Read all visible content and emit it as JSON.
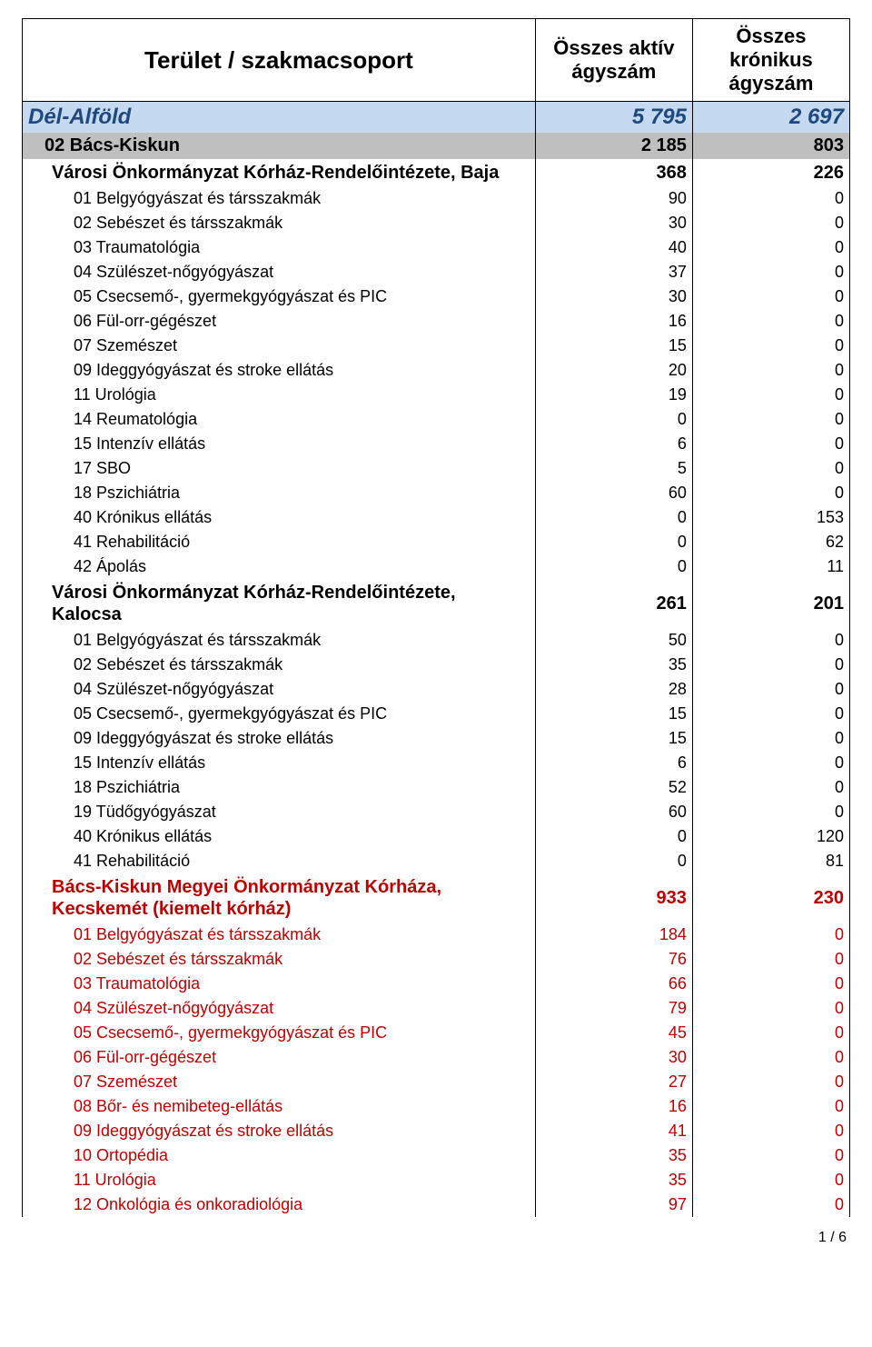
{
  "header": {
    "name": "Terület / szakmacsoport",
    "col1": "Összes aktív ágyszám",
    "col2": "Összes krónikus ágyszám"
  },
  "rows": [
    {
      "type": "region",
      "name": "Dél-Alföld",
      "a": "5 795",
      "b": "2 697"
    },
    {
      "type": "county",
      "name": "02 Bács-Kiskun",
      "a": "2 185",
      "b": "803"
    },
    {
      "type": "hospital",
      "name": "Városi Önkormányzat Kórház-Rendelőintézete, Baja",
      "a": "368",
      "b": "226"
    },
    {
      "type": "detail",
      "name": "01 Belgyógyászat és társszakmák",
      "a": "90",
      "b": "0"
    },
    {
      "type": "detail",
      "name": "02 Sebészet és társszakmák",
      "a": "30",
      "b": "0"
    },
    {
      "type": "detail",
      "name": "03 Traumatológia",
      "a": "40",
      "b": "0"
    },
    {
      "type": "detail",
      "name": "04 Szülészet-nőgyógyászat",
      "a": "37",
      "b": "0"
    },
    {
      "type": "detail",
      "name": "05 Csecsemő-, gyermekgyógyászat és PIC",
      "a": "30",
      "b": "0"
    },
    {
      "type": "detail",
      "name": "06 Fül-orr-gégészet",
      "a": "16",
      "b": "0"
    },
    {
      "type": "detail",
      "name": "07 Szemészet",
      "a": "15",
      "b": "0"
    },
    {
      "type": "detail",
      "name": "09 Ideggyógyászat és stroke ellátás",
      "a": "20",
      "b": "0"
    },
    {
      "type": "detail",
      "name": "11 Urológia",
      "a": "19",
      "b": "0"
    },
    {
      "type": "detail",
      "name": "14 Reumatológia",
      "a": "0",
      "b": "0"
    },
    {
      "type": "detail",
      "name": "15 Intenzív ellátás",
      "a": "6",
      "b": "0"
    },
    {
      "type": "detail",
      "name": "17 SBO",
      "a": "5",
      "b": "0"
    },
    {
      "type": "detail",
      "name": "18 Pszichiátria",
      "a": "60",
      "b": "0"
    },
    {
      "type": "detail",
      "name": "40 Krónikus ellátás",
      "a": "0",
      "b": "153"
    },
    {
      "type": "detail",
      "name": "41 Rehabilitáció",
      "a": "0",
      "b": "62"
    },
    {
      "type": "detail",
      "name": "42 Ápolás",
      "a": "0",
      "b": "11"
    },
    {
      "type": "hospital",
      "name": "Városi Önkormányzat Kórház-Rendelőintézete, Kalocsa",
      "a": "261",
      "b": "201"
    },
    {
      "type": "detail",
      "name": "01 Belgyógyászat és társszakmák",
      "a": "50",
      "b": "0"
    },
    {
      "type": "detail",
      "name": "02 Sebészet és társszakmák",
      "a": "35",
      "b": "0"
    },
    {
      "type": "detail",
      "name": "04 Szülészet-nőgyógyászat",
      "a": "28",
      "b": "0"
    },
    {
      "type": "detail",
      "name": "05 Csecsemő-, gyermekgyógyászat és PIC",
      "a": "15",
      "b": "0"
    },
    {
      "type": "detail",
      "name": "09 Ideggyógyászat és stroke ellátás",
      "a": "15",
      "b": "0"
    },
    {
      "type": "detail",
      "name": "15 Intenzív ellátás",
      "a": "6",
      "b": "0"
    },
    {
      "type": "detail",
      "name": "18 Pszichiátria",
      "a": "52",
      "b": "0"
    },
    {
      "type": "detail",
      "name": "19 Tüdőgyógyászat",
      "a": "60",
      "b": "0"
    },
    {
      "type": "detail",
      "name": "40 Krónikus ellátás",
      "a": "0",
      "b": "120"
    },
    {
      "type": "detail",
      "name": "41 Rehabilitáció",
      "a": "0",
      "b": "81"
    },
    {
      "type": "hospital-red",
      "name": "Bács-Kiskun Megyei Önkormányzat Kórháza, Kecskemét (kiemelt kórház)",
      "a": "933",
      "b": "230"
    },
    {
      "type": "detail-red",
      "name": "01 Belgyógyászat és társszakmák",
      "a": "184",
      "b": "0"
    },
    {
      "type": "detail-red",
      "name": "02 Sebészet és társszakmák",
      "a": "76",
      "b": "0"
    },
    {
      "type": "detail-red",
      "name": "03 Traumatológia",
      "a": "66",
      "b": "0"
    },
    {
      "type": "detail-red",
      "name": "04 Szülészet-nőgyógyászat",
      "a": "79",
      "b": "0"
    },
    {
      "type": "detail-red",
      "name": "05 Csecsemő-, gyermekgyógyászat és PIC",
      "a": "45",
      "b": "0"
    },
    {
      "type": "detail-red",
      "name": "06 Fül-orr-gégészet",
      "a": "30",
      "b": "0"
    },
    {
      "type": "detail-red",
      "name": "07 Szemészet",
      "a": "27",
      "b": "0"
    },
    {
      "type": "detail-red",
      "name": "08 Bőr- és nemibeteg-ellátás",
      "a": "16",
      "b": "0"
    },
    {
      "type": "detail-red",
      "name": "09 Ideggyógyászat és stroke ellátás",
      "a": "41",
      "b": "0"
    },
    {
      "type": "detail-red",
      "name": "10 Ortopédia",
      "a": "35",
      "b": "0"
    },
    {
      "type": "detail-red",
      "name": "11 Urológia",
      "a": "35",
      "b": "0"
    },
    {
      "type": "detail-red",
      "name": "12 Onkológia és onkoradiológia",
      "a": "97",
      "b": "0"
    }
  ],
  "footer": "1 / 6"
}
